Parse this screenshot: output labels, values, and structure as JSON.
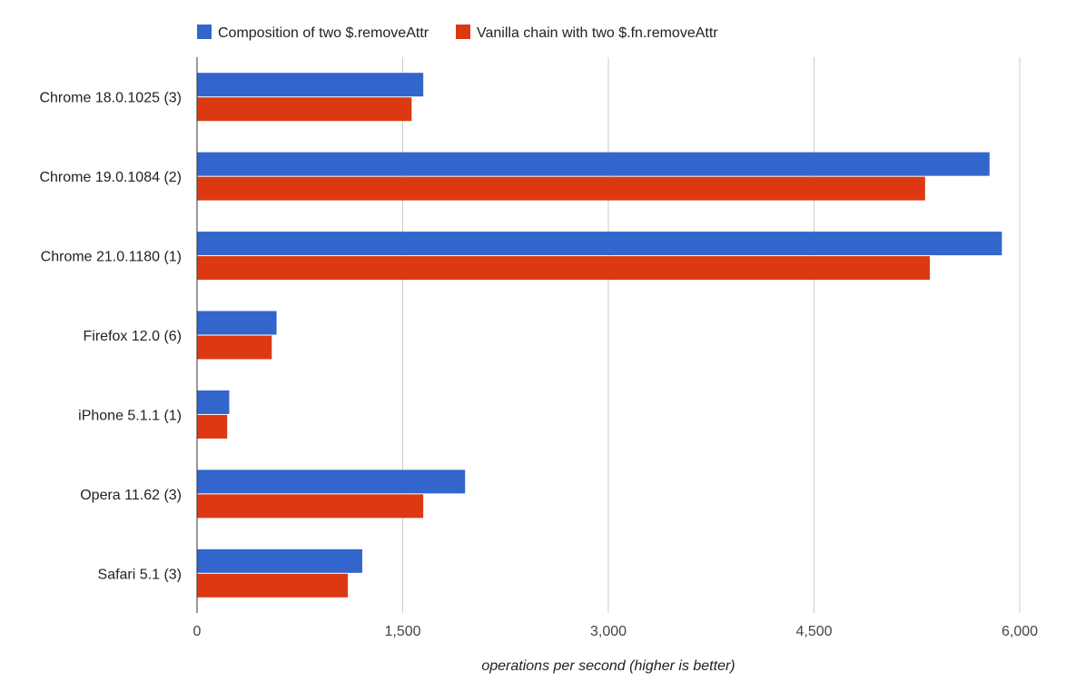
{
  "chart_data": {
    "type": "bar",
    "orientation": "horizontal",
    "categories": [
      "Chrome 18.0.1025 (3)",
      "Chrome 19.0.1084 (2)",
      "Chrome 21.0.1180 (1)",
      "Firefox 12.0 (6)",
      "iPhone 5.1.1 (1)",
      "Opera 11.62 (3)",
      "Safari 5.1 (3)"
    ],
    "series": [
      {
        "name": "Composition of two $.removeAttr",
        "color": "#3366cc",
        "values": [
          1650,
          5780,
          5870,
          580,
          235,
          1955,
          1205
        ]
      },
      {
        "name": "Vanilla chain with two $.fn.removeAttr",
        "color": "#dc3912",
        "values": [
          1565,
          5310,
          5345,
          545,
          220,
          1650,
          1100
        ]
      }
    ],
    "xlabel": "operations per second (higher is better)",
    "ylabel": "",
    "xlim": [
      0,
      6000
    ],
    "ticks": [
      0,
      1500,
      3000,
      4500,
      6000
    ],
    "tick_labels": [
      "0",
      "1,500",
      "3,000",
      "4,500",
      "6,000"
    ],
    "grid": true,
    "legend_position": "top"
  }
}
